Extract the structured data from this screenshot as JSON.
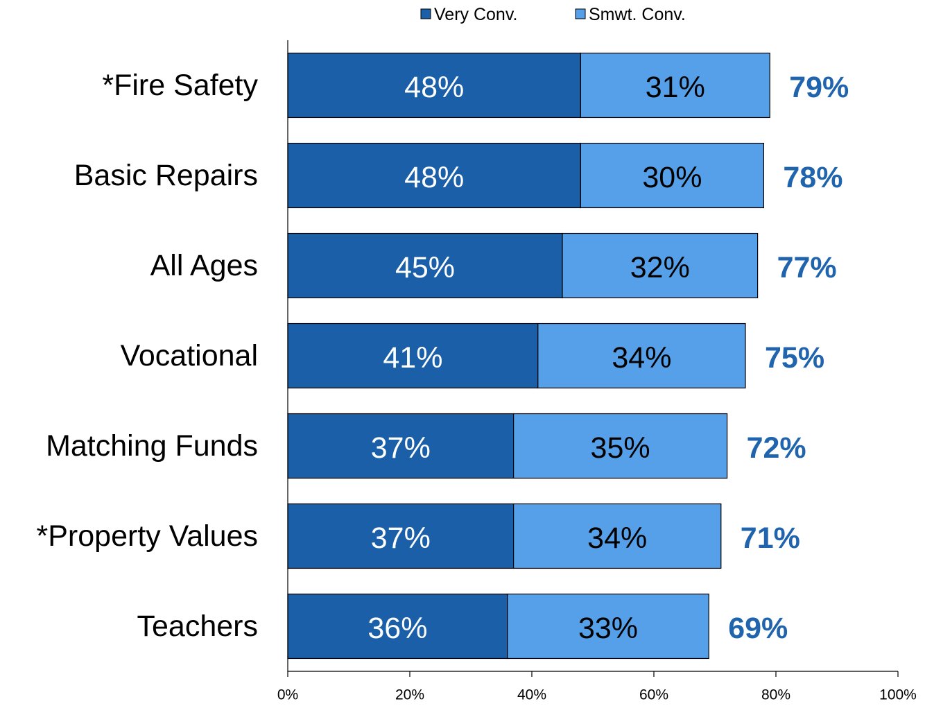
{
  "chart_data": {
    "type": "stacked_barh",
    "categories": [
      "*Fire Safety",
      "Basic Repairs",
      "All Ages",
      "Vocational",
      "Matching Funds",
      "*Property Values",
      "Teachers"
    ],
    "series": [
      {
        "name": "Very Conv.",
        "color": "#1a5fa8",
        "label_color": "#ffffff",
        "values": [
          48,
          48,
          45,
          41,
          37,
          37,
          36
        ],
        "value_labels": [
          "48%",
          "48%",
          "45%",
          "41%",
          "37%",
          "37%",
          "36%"
        ]
      },
      {
        "name": "Smwt. Conv.",
        "color": "#55a0e8",
        "label_color": "#000000",
        "values": [
          31,
          30,
          32,
          34,
          35,
          34,
          33
        ],
        "value_labels": [
          "31%",
          "30%",
          "32%",
          "34%",
          "35%",
          "34%",
          "33%"
        ]
      }
    ],
    "totals": [
      79,
      78,
      77,
      75,
      72,
      71,
      69
    ],
    "total_labels": [
      "79%",
      "78%",
      "77%",
      "75%",
      "72%",
      "71%",
      "69%"
    ],
    "total_color": "#1f64ad",
    "xlim": [
      0,
      100
    ],
    "xticks": [
      {
        "value": 0,
        "label": "0%"
      },
      {
        "value": 20,
        "label": "20%"
      },
      {
        "value": 40,
        "label": "40%"
      },
      {
        "value": 60,
        "label": "60%"
      },
      {
        "value": 80,
        "label": "80%"
      },
      {
        "value": 100,
        "label": "100%"
      }
    ],
    "legend": "top"
  }
}
